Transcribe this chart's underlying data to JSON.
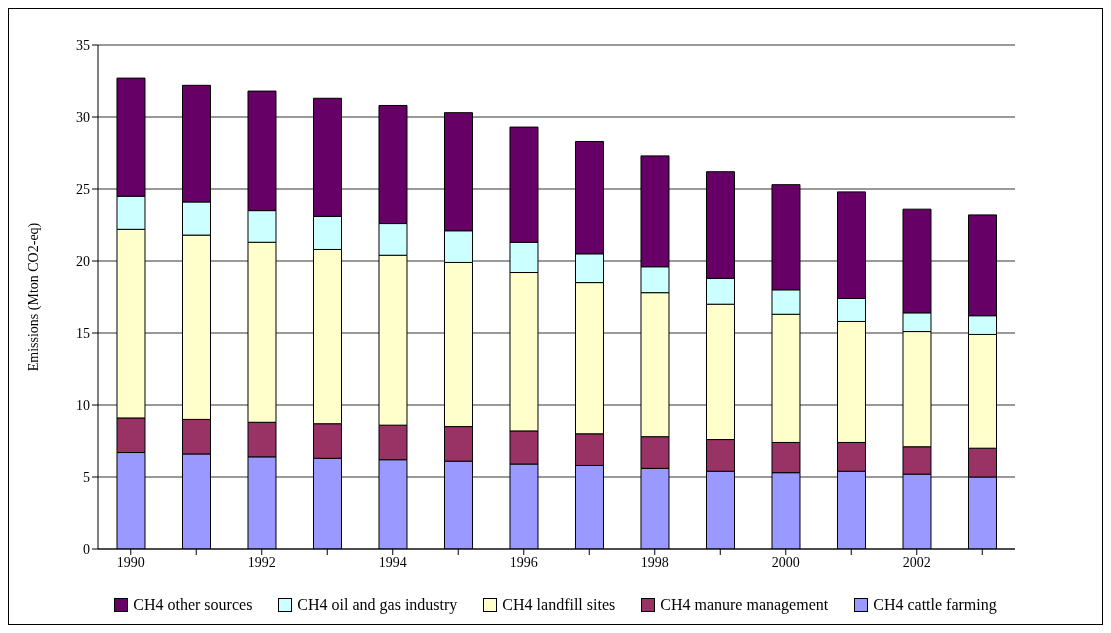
{
  "chart_data": {
    "type": "bar",
    "stacked": true,
    "ylabel": "Emissions (Mton CO2-eq)",
    "categories": [
      "1990",
      null,
      "1992",
      null,
      "1994",
      null,
      "1996",
      null,
      "1998",
      null,
      "2000",
      null,
      "2002",
      null
    ],
    "series": [
      {
        "name": "CH4 cattle farming",
        "color": "#9999ff",
        "values": [
          6.7,
          6.6,
          6.4,
          6.3,
          6.2,
          6.1,
          5.9,
          5.8,
          5.6,
          5.4,
          5.3,
          5.4,
          5.2,
          5.0
        ]
      },
      {
        "name": "CH4 manure management",
        "color": "#993366",
        "values": [
          2.4,
          2.4,
          2.4,
          2.4,
          2.4,
          2.4,
          2.3,
          2.2,
          2.2,
          2.2,
          2.1,
          2.0,
          1.9,
          2.0
        ]
      },
      {
        "name": "CH4 landfill sites",
        "color": "#ffffcc",
        "values": [
          13.1,
          12.8,
          12.5,
          12.1,
          11.8,
          11.4,
          11.0,
          10.5,
          10.0,
          9.4,
          8.9,
          8.4,
          8.0,
          7.9
        ]
      },
      {
        "name": "CH4 oil and gas industry",
        "color": "#ccffff",
        "values": [
          2.3,
          2.3,
          2.2,
          2.3,
          2.2,
          2.2,
          2.1,
          2.0,
          1.8,
          1.8,
          1.7,
          1.6,
          1.3,
          1.3
        ]
      },
      {
        "name": "CH4 other sources",
        "color": "#660066",
        "values": [
          8.2,
          8.1,
          8.3,
          8.2,
          8.2,
          8.2,
          8.0,
          7.8,
          7.7,
          7.4,
          7.3,
          7.4,
          7.2,
          7.0
        ]
      }
    ],
    "ylim": [
      0,
      35
    ],
    "yticks": [
      0,
      5,
      10,
      15,
      20,
      25,
      30,
      35
    ],
    "grid": "y",
    "legend": "bottom"
  }
}
